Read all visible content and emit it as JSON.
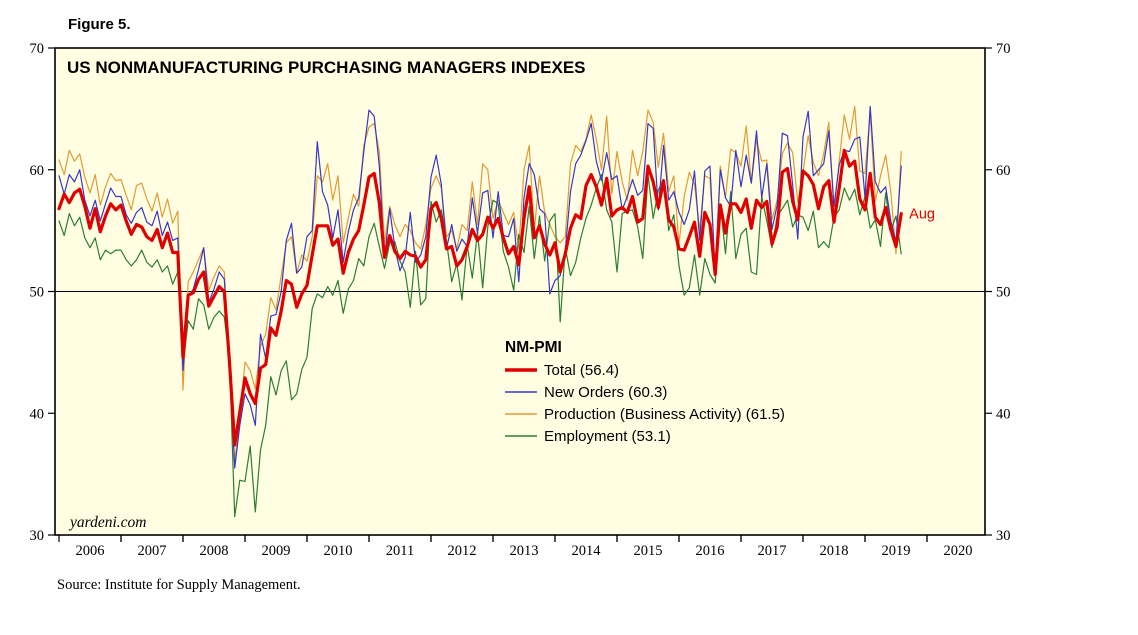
{
  "figure_label": "Figure 5.",
  "source_note": "Source: Institute for Supply Management.",
  "chart_data": {
    "type": "line",
    "title": "US NONMANUFACTURING PURCHASING MANAGERS INDEXES",
    "watermark": "yardeni.com",
    "legend_title": "NM-PMI",
    "last_point_label": "Aug",
    "frequency": "monthly",
    "x_start_year": 2006,
    "x_labels": [
      "2006",
      "2007",
      "2008",
      "2009",
      "2010",
      "2011",
      "2012",
      "2013",
      "2014",
      "2015",
      "2016",
      "2017",
      "2018",
      "2019",
      "2020"
    ],
    "y_ticks": [
      30,
      40,
      50,
      60,
      70
    ],
    "ylim": [
      30,
      70
    ],
    "reference_line_y": 50,
    "plot_bg": "#FFFEE2",
    "colors": {
      "total": "#E00000",
      "new_orders": "#3737C8",
      "production": "#E39A34",
      "employment": "#2E7D32",
      "label": "#E00000"
    },
    "series": [
      {
        "key": "total",
        "name": "Total",
        "legend": "Total (56.4)",
        "color": "#E00000",
        "width": 3.2,
        "values": [
          56.8,
          58.0,
          57.3,
          58.1,
          58.4,
          57.0,
          55.2,
          56.8,
          54.9,
          56.2,
          57.2,
          56.7,
          57.1,
          55.8,
          54.7,
          55.5,
          55.3,
          54.5,
          54.2,
          55.1,
          53.6,
          54.8,
          53.2,
          53.2,
          44.6,
          49.7,
          49.9,
          51.0,
          51.6,
          48.8,
          49.6,
          50.4,
          50.0,
          44.2,
          37.4,
          40.1,
          42.9,
          41.6,
          40.8,
          43.7,
          44.0,
          47.0,
          46.4,
          48.4,
          50.9,
          50.6,
          48.7,
          49.8,
          50.5,
          53.0,
          55.4,
          55.4,
          55.4,
          53.8,
          54.3,
          51.5,
          53.2,
          54.3,
          55.0,
          57.1,
          59.4,
          59.7,
          57.3,
          52.8,
          54.6,
          53.3,
          52.7,
          53.3,
          53.0,
          52.9,
          52.0,
          52.6,
          56.8,
          57.3,
          56.0,
          53.5,
          53.7,
          52.1,
          52.6,
          53.7,
          55.1,
          54.2,
          54.7,
          56.1,
          55.2,
          56.0,
          54.4,
          53.1,
          53.7,
          52.2,
          56.0,
          58.6,
          54.4,
          55.4,
          53.9,
          53.0,
          54.0,
          51.6,
          53.1,
          55.2,
          56.3,
          56.0,
          58.7,
          59.6,
          58.6,
          57.1,
          59.3,
          56.2,
          56.7,
          56.9,
          56.5,
          57.8,
          55.7,
          56.0,
          60.3,
          59.0,
          56.9,
          59.1,
          55.9,
          55.3,
          53.5,
          53.4,
          54.5,
          55.7,
          52.9,
          56.5,
          55.5,
          51.4,
          57.1,
          54.8,
          57.2,
          57.2,
          56.5,
          57.6,
          55.2,
          57.5,
          56.9,
          57.4,
          53.9,
          55.3,
          59.8,
          60.1,
          57.4,
          55.9,
          59.9,
          59.5,
          58.8,
          56.8,
          58.6,
          59.1,
          55.7,
          58.5,
          61.6,
          60.3,
          60.7,
          57.6,
          56.7,
          59.7,
          56.1,
          55.5,
          56.9,
          55.1,
          53.7,
          56.4
        ]
      },
      {
        "key": "new_orders",
        "name": "New Orders",
        "legend": "New Orders (60.3)",
        "color": "#3737C8",
        "width": 1.2,
        "values": [
          59.5,
          58.0,
          59.6,
          59.0,
          60.0,
          57.5,
          56.2,
          57.5,
          55.8,
          57.2,
          58.5,
          57.8,
          57.8,
          56.3,
          55.6,
          56.5,
          56.9,
          55.7,
          55.4,
          56.6,
          54.6,
          55.7,
          54.2,
          54.4,
          43.5,
          49.6,
          50.2,
          51.8,
          53.6,
          49.1,
          50.2,
          51.6,
          51.0,
          44.0,
          35.5,
          39.0,
          41.6,
          40.7,
          39.0,
          46.5,
          44.5,
          48.0,
          48.1,
          50.0,
          54.2,
          55.6,
          51.5,
          52.0,
          54.5,
          55.0,
          62.3,
          58.2,
          57.1,
          54.4,
          56.7,
          52.4,
          54.9,
          56.7,
          57.7,
          61.5,
          64.9,
          64.4,
          60.3,
          52.7,
          56.8,
          53.6,
          51.7,
          52.8,
          56.5,
          52.4,
          53.0,
          54.5,
          59.4,
          61.2,
          58.8,
          53.5,
          55.5,
          53.3,
          54.3,
          53.7,
          57.7,
          54.8,
          58.1,
          58.3,
          54.4,
          58.2,
          54.6,
          54.5,
          56.0,
          50.8,
          57.7,
          60.5,
          59.6,
          56.8,
          56.4,
          49.8,
          50.9,
          51.3,
          53.4,
          58.2,
          60.5,
          61.2,
          62.4,
          63.8,
          60.7,
          59.1,
          61.4,
          59.2,
          59.5,
          56.7,
          57.8,
          59.2,
          57.9,
          58.3,
          63.8,
          63.4,
          56.7,
          62.0,
          57.5,
          58.2,
          56.5,
          55.5,
          56.7,
          59.9,
          54.2,
          59.9,
          60.3,
          51.4,
          60.0,
          57.7,
          57.0,
          61.6,
          58.6,
          61.2,
          58.9,
          63.2,
          57.7,
          60.5,
          55.1,
          57.1,
          63.0,
          62.8,
          58.7,
          54.3,
          62.7,
          64.8,
          59.5,
          60.0,
          60.5,
          63.2,
          57.0,
          60.4,
          61.6,
          61.5,
          62.5,
          62.7,
          57.7,
          65.2,
          59.0,
          58.1,
          58.6,
          55.8,
          54.1,
          60.3
        ]
      },
      {
        "key": "production",
        "name": "Production (Business Activity)",
        "legend": "Production (Business Activity) (61.5)",
        "color": "#E39A34",
        "width": 1.2,
        "values": [
          60.8,
          59.6,
          61.6,
          60.7,
          61.3,
          59.4,
          58.1,
          59.6,
          57.1,
          58.6,
          59.7,
          59.1,
          59.2,
          57.9,
          56.7,
          58.7,
          58.9,
          57.6,
          56.6,
          58.1,
          56.1,
          57.6,
          55.6,
          56.6,
          41.9,
          50.8,
          51.6,
          52.6,
          53.6,
          50.1,
          51.2,
          52.1,
          51.6,
          44.6,
          36.0,
          39.6,
          44.2,
          43.5,
          42.0,
          45.5,
          46.5,
          49.5,
          48.5,
          51.3,
          54.0,
          54.5,
          51.5,
          53.0,
          52.5,
          54.5,
          59.5,
          59.0,
          60.5,
          57.5,
          59.5,
          54.0,
          56.0,
          58.0,
          57.0,
          62.0,
          63.5,
          63.8,
          61.5,
          54.0,
          57.0,
          55.5,
          54.5,
          55.5,
          55.0,
          54.0,
          53.5,
          55.5,
          58.5,
          59.5,
          58.5,
          54.5,
          55.0,
          53.5,
          55.5,
          55.0,
          59.0,
          55.5,
          60.5,
          60.0,
          56.0,
          57.5,
          56.5,
          55.5,
          56.5,
          53.5,
          60.0,
          62.0,
          55.0,
          59.5,
          56.5,
          55.5,
          54.5,
          54.0,
          54.5,
          60.5,
          62.0,
          61.5,
          62.5,
          64.5,
          62.5,
          60.0,
          64.4,
          58.0,
          61.5,
          59.0,
          57.5,
          61.6,
          59.5,
          61.5,
          64.9,
          63.9,
          60.2,
          63.0,
          58.2,
          59.5,
          53.9,
          57.8,
          59.8,
          58.8,
          55.1,
          59.5,
          59.3,
          51.8,
          60.3,
          57.7,
          61.7,
          61.4,
          60.3,
          63.6,
          58.9,
          62.4,
          60.7,
          60.8,
          55.9,
          57.5,
          61.3,
          62.2,
          61.4,
          57.3,
          59.8,
          62.8,
          60.6,
          59.5,
          61.3,
          63.9,
          56.5,
          60.7,
          64.5,
          62.5,
          65.2,
          59.9,
          59.7,
          64.7,
          57.4,
          59.5,
          61.2,
          58.2,
          53.1,
          61.5
        ]
      },
      {
        "key": "employment",
        "name": "Employment",
        "legend": "Employment (53.1)",
        "color": "#2E7D32",
        "width": 1.2,
        "values": [
          55.8,
          54.6,
          56.4,
          55.4,
          56.1,
          54.4,
          53.6,
          54.4,
          52.6,
          53.4,
          53.1,
          53.4,
          53.4,
          52.6,
          52.1,
          52.6,
          53.4,
          52.4,
          52.0,
          52.6,
          51.6,
          52.1,
          50.6,
          51.6,
          43.9,
          47.6,
          46.9,
          49.4,
          48.9,
          46.9,
          47.9,
          48.4,
          47.9,
          44.4,
          31.5,
          34.5,
          34.4,
          37.3,
          31.9,
          37.0,
          39.0,
          43.0,
          41.5,
          43.5,
          44.3,
          41.1,
          41.6,
          43.6,
          44.6,
          48.6,
          49.8,
          49.5,
          50.4,
          49.7,
          50.9,
          48.2,
          50.2,
          50.9,
          52.7,
          52.1,
          54.5,
          55.6,
          53.7,
          51.9,
          54.0,
          54.1,
          52.5,
          51.6,
          48.7,
          53.3,
          48.9,
          49.4,
          57.4,
          55.7,
          56.7,
          54.2,
          50.8,
          52.3,
          49.3,
          53.8,
          51.1,
          54.9,
          50.3,
          55.3,
          57.5,
          57.2,
          53.3,
          52.0,
          50.1,
          54.7,
          53.2,
          57.0,
          52.7,
          56.2,
          52.5,
          55.8,
          56.4,
          47.5,
          53.6,
          51.3,
          52.4,
          54.4,
          56.0,
          57.1,
          58.5,
          59.6,
          56.7,
          55.7,
          51.6,
          56.4,
          56.6,
          56.7,
          55.3,
          52.7,
          59.6,
          56.0,
          58.3,
          59.2,
          55.0,
          56.3,
          52.1,
          49.7,
          50.3,
          53.0,
          49.7,
          52.7,
          51.4,
          50.7,
          57.2,
          53.1,
          58.2,
          52.7,
          54.7,
          55.2,
          51.6,
          51.4,
          57.8,
          55.8,
          53.6,
          56.2,
          56.8,
          57.5,
          55.3,
          56.3,
          56.1,
          55.0,
          56.6,
          53.6,
          54.1,
          53.6,
          56.1,
          56.7,
          58.5,
          57.5,
          58.4,
          56.3,
          57.8,
          55.2,
          55.9,
          53.7,
          58.1,
          55.0,
          56.2,
          53.1
        ]
      }
    ]
  }
}
